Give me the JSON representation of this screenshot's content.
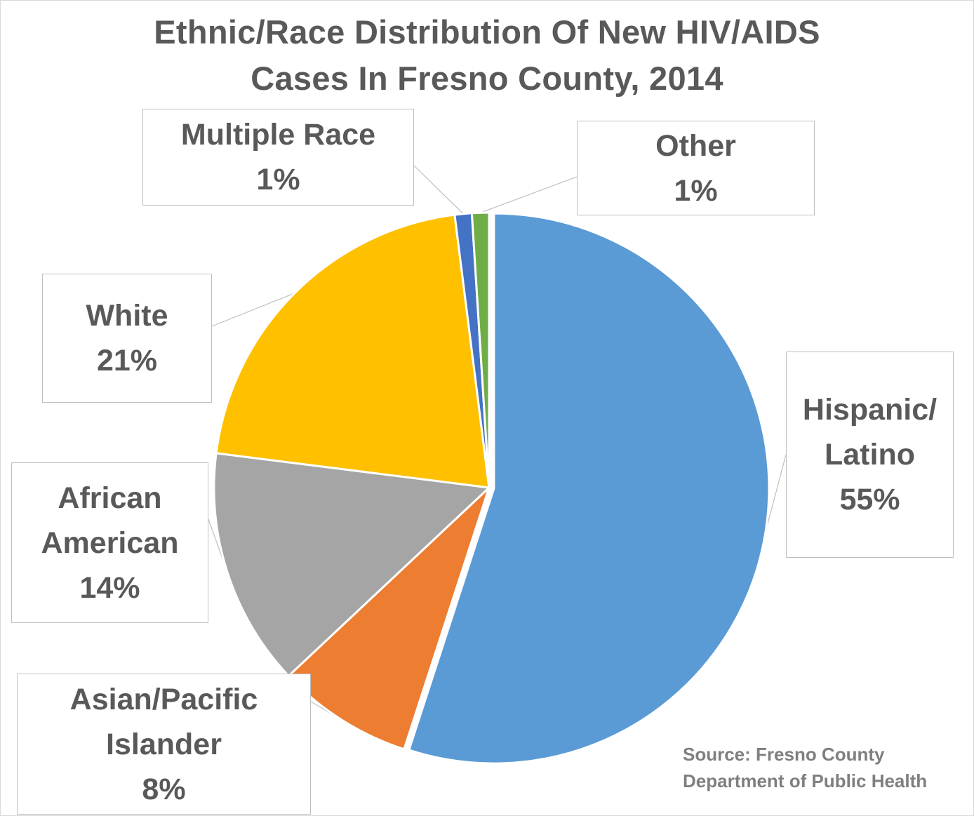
{
  "chart_data": {
    "type": "pie",
    "title": [
      "Ethnic/Race Distribution Of New HIV/AIDS",
      "Cases In Fresno County, 2014"
    ],
    "slices": [
      {
        "key": "hispanic",
        "label_lines": [
          "Hispanic/",
          "Latino"
        ],
        "pct_label": "55%",
        "value": 55,
        "color": "#5b9bd5"
      },
      {
        "key": "asian",
        "label_lines": [
          "Asian/Pacific",
          "Islander"
        ],
        "pct_label": "8%",
        "value": 8,
        "color": "#ed7d31"
      },
      {
        "key": "african",
        "label_lines": [
          "African",
          "American"
        ],
        "pct_label": "14%",
        "value": 14,
        "color": "#a5a5a5"
      },
      {
        "key": "white",
        "label_lines": [
          "White"
        ],
        "pct_label": "21%",
        "value": 21,
        "color": "#ffc000"
      },
      {
        "key": "multiple",
        "label_lines": [
          "Multiple Race"
        ],
        "pct_label": "1%",
        "value": 1,
        "color": "#4472c4"
      },
      {
        "key": "other",
        "label_lines": [
          "Other"
        ],
        "pct_label": "1%",
        "value": 1,
        "color": "#70ad47"
      }
    ],
    "legend": "none",
    "source": [
      "Source: Fresno County",
      "Department of Public Health"
    ]
  }
}
